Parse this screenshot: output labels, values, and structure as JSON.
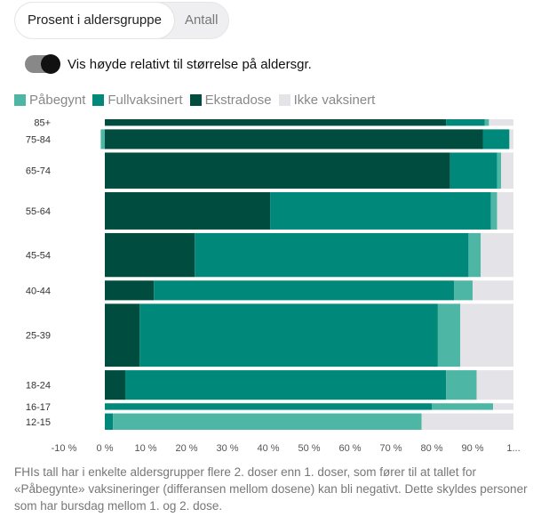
{
  "tabs": {
    "percent_label": "Prosent i aldersgruppe",
    "count_label": "Antall"
  },
  "toggle": {
    "label": "Vis høyde relativt til størrelse på aldersgr.",
    "on": true
  },
  "legend": [
    {
      "label": "Påbegynt",
      "color": "#4db6a4"
    },
    {
      "label": "Fullvaksinert",
      "color": "#00897b"
    },
    {
      "label": "Ekstradose",
      "color": "#004d40"
    },
    {
      "label": "Ikke vaksinert",
      "color": "#e4e4e8"
    }
  ],
  "chart_data": {
    "type": "bar",
    "orientation": "horizontal",
    "stacked": true,
    "categories": [
      "85+",
      "75-84",
      "65-74",
      "55-64",
      "45-54",
      "40-44",
      "25-39",
      "18-24",
      "16-17",
      "12-15"
    ],
    "relative_heights": [
      1.0,
      3.0,
      5.5,
      5.7,
      6.7,
      3.0,
      9.6,
      4.5,
      1.0,
      2.5
    ],
    "series": [
      {
        "name": "Ekstradose",
        "color": "#004d40",
        "values": [
          83.5,
          92.5,
          84.5,
          40.5,
          22.0,
          12.0,
          8.5,
          5.0,
          0.0,
          0.0
        ]
      },
      {
        "name": "Fullvaksinert",
        "color": "#00897b",
        "values": [
          9.5,
          6.5,
          11.5,
          54.0,
          67.0,
          73.5,
          73.0,
          78.5,
          80.0,
          2.0
        ]
      },
      {
        "name": "Påbegynt",
        "color": "#4db6a4",
        "values": [
          1.0,
          -1.0,
          1.0,
          1.5,
          3.0,
          4.5,
          5.5,
          7.5,
          15.0,
          75.5
        ]
      },
      {
        "name": "Ikke vaksinert",
        "color": "#e4e4e8",
        "values": [
          6.0,
          2.0,
          3.0,
          4.0,
          8.0,
          10.0,
          13.0,
          9.5,
          5.0,
          22.5
        ]
      }
    ],
    "x_ticks": [
      "-10 %",
      "0 %",
      "10 %",
      "20 %",
      "30 %",
      "40 %",
      "50 %",
      "60 %",
      "70 %",
      "80 %",
      "90 %",
      "1..."
    ],
    "xlim": [
      -10,
      100
    ],
    "legend_position": "top-left"
  },
  "footnote": "FHIs tall har i enkelte aldersgrupper flere 2. doser enn 1. doser, som fører til at tallet for «Påbegynte» vaksineringer (differansen mellom dosene) kan bli negativt. Dette skyldes personer som har bursdag mellom 1. og 2. dose."
}
